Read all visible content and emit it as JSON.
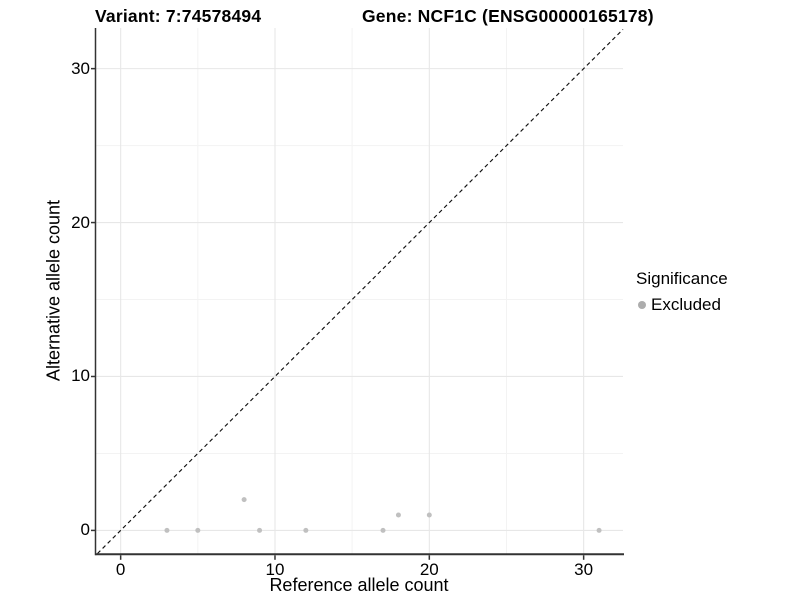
{
  "chart_data": {
    "type": "scatter",
    "title_left": "Variant: 7:74578494",
    "title_right": "Gene: NCF1C (ENSG00000165178)",
    "xlabel": "Reference allele count",
    "ylabel": "Alternative allele count",
    "xlim": [
      -1.63,
      32.55
    ],
    "ylim": [
      -1.5,
      32.64
    ],
    "x_ticks": [
      0,
      10,
      20,
      30
    ],
    "y_ticks": [
      0,
      10,
      20,
      30
    ],
    "x_minor_ticks": [
      5,
      15,
      25
    ],
    "y_minor_ticks": [
      5,
      15,
      25
    ],
    "grid": "major and minor, light gray on white",
    "identity_line": {
      "style": "dashed",
      "slope": 1,
      "intercept": 0
    },
    "series": [
      {
        "name": "Excluded",
        "color": "#c0c0c0",
        "points": [
          [
            3,
            0
          ],
          [
            5,
            0
          ],
          [
            8,
            2
          ],
          [
            9,
            0
          ],
          [
            12,
            0
          ],
          [
            17,
            0
          ],
          [
            18,
            1
          ],
          [
            20,
            1
          ],
          [
            31,
            0
          ]
        ]
      }
    ],
    "legend": {
      "title": "Significance",
      "position": "right",
      "entries": [
        {
          "label": "Excluded",
          "color": "#adadad"
        }
      ]
    }
  },
  "colors": {
    "background": "#ffffff",
    "grid_major": "#e7e7e7",
    "grid_minor": "#f3f3f3",
    "axis_line": "#333333",
    "tick_mark": "#333333",
    "dashed_line": "#111111",
    "text": "#000000"
  }
}
